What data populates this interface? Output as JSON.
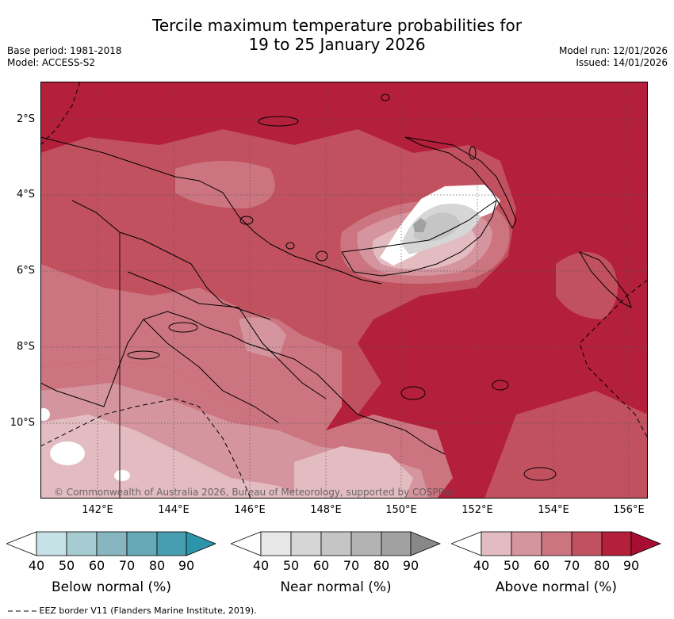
{
  "title": {
    "line1": "Tercile maximum temperature probabilities for",
    "line2": "19 to 25 January 2026"
  },
  "meta_left": {
    "base_period": "Base period: 1981-2018",
    "model": "Model: ACCESS-S2"
  },
  "meta_right": {
    "model_run": "Model run: 12/01/2026",
    "issued": "Issued: 14/01/2026"
  },
  "map": {
    "lat_labels": [
      "2°S",
      "4°S",
      "6°S",
      "8°S",
      "10°S"
    ],
    "lon_labels": [
      "142°E",
      "144°E",
      "146°E",
      "148°E",
      "150°E",
      "152°E",
      "154°E",
      "156°E"
    ],
    "copyright": "© Commonwealth of Australia 2026, Bureau of Meteorology, supported by COSPPac"
  },
  "colorbars": [
    {
      "title": "Below normal (%)",
      "labels": [
        "40",
        "50",
        "60",
        "70",
        "80",
        "90"
      ],
      "colors": [
        "#ffffff",
        "#c7e2e7",
        "#a6cbd1",
        "#87b6c0",
        "#66a8b6",
        "#469eb0",
        "#2c95aa"
      ]
    },
    {
      "title": "Near normal (%)",
      "labels": [
        "40",
        "50",
        "60",
        "70",
        "80",
        "90"
      ],
      "colors": [
        "#ffffff",
        "#e8e8e8",
        "#d6d6d6",
        "#c5c5c5",
        "#b3b3b3",
        "#a1a1a1",
        "#888888"
      ]
    },
    {
      "title": "Above normal (%)",
      "labels": [
        "40",
        "50",
        "60",
        "70",
        "80",
        "90"
      ],
      "colors": [
        "#ffffff",
        "#e3bcc2",
        "#d5959e",
        "#cc7580",
        "#c1515f",
        "#b41f3b",
        "#a70e31"
      ]
    }
  ],
  "eez_note": "EEZ border V11 (Flanders Marine Institute, 2019)."
}
